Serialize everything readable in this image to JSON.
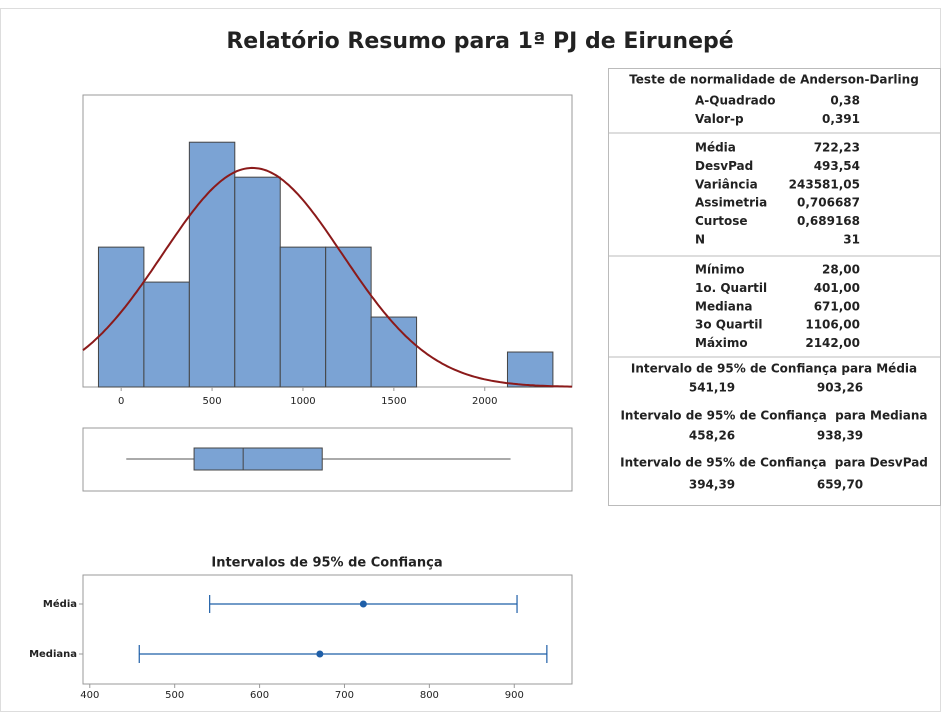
{
  "title": "Relatório Resumo para 1ª PJ de Eirunepé",
  "chart_data": [
    {
      "type": "histogram",
      "bins": [
        -125,
        125,
        375,
        625,
        875,
        1125,
        1375,
        1625,
        1875,
        2125,
        2375
      ],
      "counts": [
        4,
        3,
        7,
        6,
        4,
        4,
        2,
        0,
        0,
        1
      ],
      "color": "#7ba3d4",
      "fit_color": "#8b1a1a",
      "fit_mean": 722.23,
      "fit_sd": 493.54,
      "xlim": [
        -210,
        2480
      ],
      "xticks": [
        0,
        500,
        1000,
        1500,
        2000
      ],
      "ylim": [
        0,
        8.35
      ]
    },
    {
      "type": "boxplot",
      "min": 28,
      "q1": 401,
      "median": 671,
      "q3": 1106,
      "max": 2142,
      "color": "#7ba3d4",
      "xlim": [
        -210,
        2480
      ]
    },
    {
      "type": "interval",
      "title": "Intervalos de 95% de Confiança",
      "categories": [
        "Média",
        "Mediana"
      ],
      "centers": [
        722.23,
        671
      ],
      "lows": [
        541.19,
        458.26
      ],
      "highs": [
        903.26,
        938.39
      ],
      "color": "#1f5fa8",
      "xlim": [
        392,
        968
      ],
      "xticks": [
        400,
        500,
        600,
        700,
        800,
        900
      ]
    }
  ],
  "stats": {
    "header": "Teste de normalidade de Anderson-Darling",
    "normality": [
      [
        "A-Quadrado",
        "0,38"
      ],
      [
        "Valor-p",
        "0,391"
      ]
    ],
    "moments": [
      [
        "Média",
        "722,23"
      ],
      [
        "DesvPad",
        "493,54"
      ],
      [
        "Variância",
        "243581,05"
      ],
      [
        "Assimetria",
        "0,706687"
      ],
      [
        "Curtose",
        "0,689168"
      ],
      [
        "N",
        "31"
      ]
    ],
    "quartiles": [
      [
        "Mínimo",
        "28,00"
      ],
      [
        "1o. Quartil",
        "401,00"
      ],
      [
        "Mediana",
        "671,00"
      ],
      [
        "3o Quartil",
        "1106,00"
      ],
      [
        "Máximo",
        "2142,00"
      ]
    ],
    "ci": [
      {
        "title": "Intervalo de 95% de Confiança para Média",
        "low": "541,19",
        "high": "903,26"
      },
      {
        "title": "Intervalo de 95% de Confiança  para Mediana",
        "low": "458,26",
        "high": "938,39"
      },
      {
        "title": "Intervalo de 95% de Confiança  para DesvPad",
        "low": "394,39",
        "high": "659,70"
      }
    ]
  }
}
